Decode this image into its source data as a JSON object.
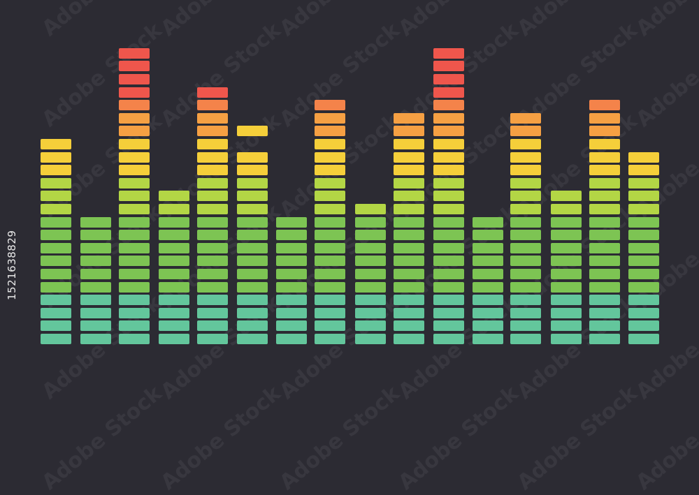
{
  "watermark": "Adobe Stock",
  "stock_id": "1521638829",
  "equalizer": {
    "levels": [
      16,
      10,
      23,
      12,
      20,
      15,
      10,
      19,
      11,
      18,
      23,
      10,
      18,
      12,
      19,
      15
    ],
    "peaks": [
      null,
      null,
      null,
      null,
      null,
      17,
      null,
      null,
      null,
      null,
      null,
      null,
      null,
      null,
      null,
      null
    ],
    "row_colors": [
      "#63c69c",
      "#63c69c",
      "#63c69c",
      "#63c69c",
      "#7dc453",
      "#7dc453",
      "#7dc453",
      "#7dc453",
      "#7dc453",
      "#7dc453",
      "#b3d645",
      "#b3d645",
      "#b3d645",
      "#f5cf3a",
      "#f5cf3a",
      "#f5cf3a",
      "#f6a043",
      "#f6a043",
      "#f4834a",
      "#ef564c",
      "#ef564c",
      "#ef564c",
      "#ef564c"
    ],
    "background": "#2c2b33"
  }
}
